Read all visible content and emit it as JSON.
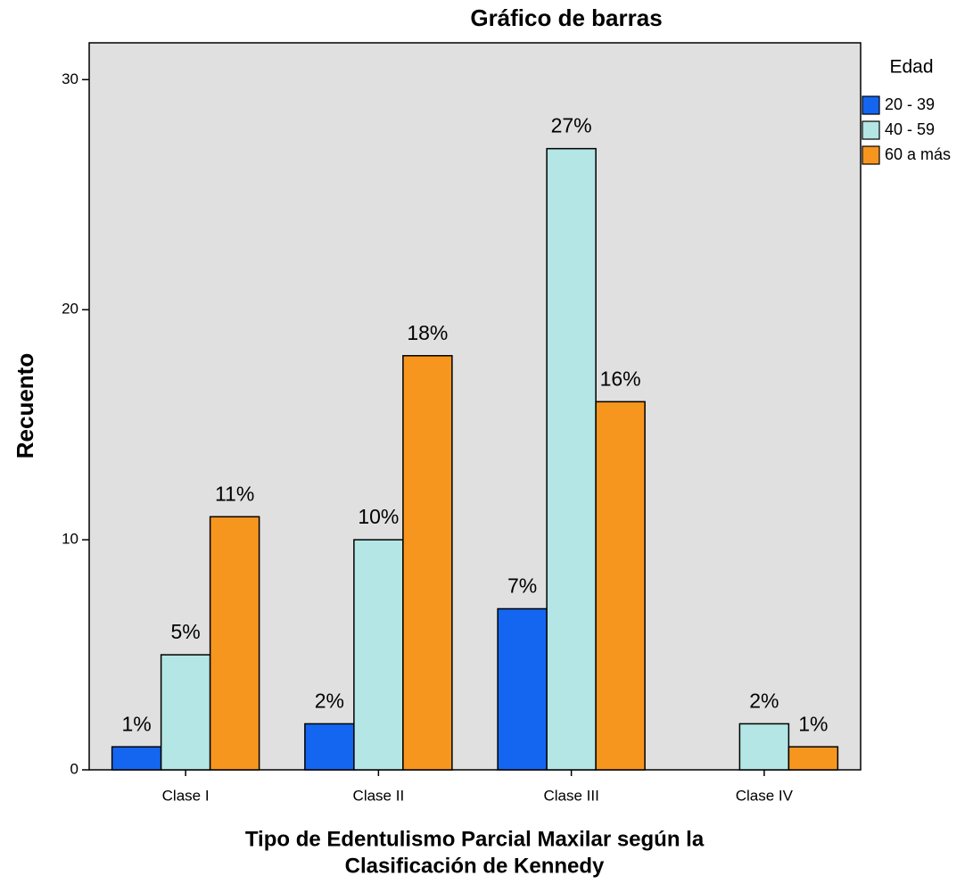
{
  "chart_data": {
    "type": "bar",
    "title": "Gráfico de barras",
    "y_label": "Recuento",
    "x_label": [
      "Tipo de Edentulismo Parcial Maxilar según la",
      "Clasificación de Kennedy"
    ],
    "legend_title": "Edad",
    "legend": "right",
    "categories": [
      "Clase I",
      "Clase II",
      "Clase III",
      "Clase IV"
    ],
    "series": [
      {
        "name": "20 - 39",
        "color": "#1466f0",
        "values": [
          1,
          2,
          7,
          null
        ],
        "value_labels": [
          "1%",
          "2%",
          "7%",
          null
        ]
      },
      {
        "name": "40 - 59",
        "color": "#b4e6e6",
        "values": [
          5,
          10,
          27,
          2
        ],
        "value_labels": [
          "5%",
          "10%",
          "27%",
          "2%"
        ]
      },
      {
        "name": "60 a más",
        "color": "#f7961e",
        "values": [
          11,
          18,
          16,
          1
        ],
        "value_labels": [
          "11%",
          "18%",
          "16%",
          "1%"
        ]
      }
    ],
    "ylim": [
      0,
      31.6
    ],
    "yticks": [
      0,
      10,
      20,
      30
    ],
    "grid": false
  }
}
